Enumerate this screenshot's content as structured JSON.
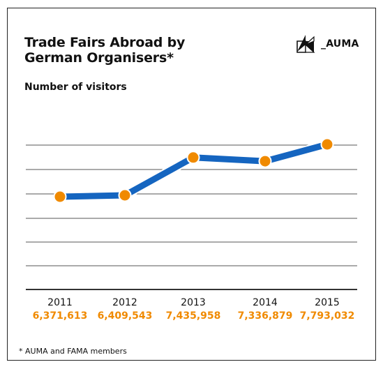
{
  "header": {
    "title_line1": "Trade Fairs Abroad by",
    "title_line2": "German Organisers*",
    "subtitle": "Number of visitors",
    "logo_text": "_AUMA"
  },
  "footnote": "* AUMA and FAMA members",
  "colors": {
    "line": "#1565c0",
    "marker": "#f08a00",
    "value_label": "#f08a00",
    "grid": "#555555"
  },
  "chart_data": {
    "type": "line",
    "title": "Trade Fairs Abroad by German Organisers*",
    "subtitle": "Number of visitors",
    "categories": [
      "2011",
      "2012",
      "2013",
      "2014",
      "2015"
    ],
    "series": [
      {
        "values": [
          6371613,
          6409543,
          7435958,
          7336879,
          7793032
        ]
      }
    ],
    "value_labels": [
      "6,371,613",
      "6,409,543",
      "7,435,958",
      "7,336,879",
      "7,793,032"
    ],
    "grid": true,
    "legend": "none"
  }
}
